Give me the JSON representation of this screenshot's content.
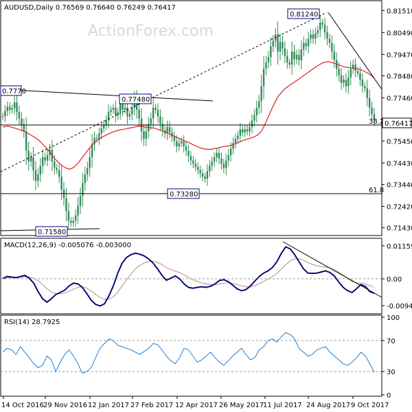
{
  "chart_data": [
    {
      "type": "candlestick",
      "panel": "price",
      "header": "AUDUSD,Daily  0.76569 0.76640 0.76249 0.76417",
      "watermark": "ActionForex.com",
      "y_ticks": [
        "0.81510",
        "0.80490",
        "0.79470",
        "0.78480",
        "0.77460",
        "0.76417",
        "0.75450",
        "0.74430",
        "0.73440",
        "0.72420",
        "0.71430"
      ],
      "y_tick_values": [
        0.8151,
        0.8049,
        0.7947,
        0.7848,
        0.7746,
        0.76417,
        0.7545,
        0.7443,
        0.7344,
        0.7242,
        0.7143
      ],
      "ylim": [
        0.7113,
        0.8187
      ],
      "last_price": "0.76417",
      "annotations": {
        "high_label": "0.81240",
        "top_left_label": "0.7770",
        "mid_label": "0.77480",
        "low_label": "0.73280",
        "bottom_label": "0.71580",
        "fib_382": "38.2",
        "fib_618": "61.8"
      },
      "series": [
        {
          "name": "Close",
          "values": [
            0.766,
            0.7685,
            0.7705,
            0.769,
            0.7698,
            0.7725,
            0.768,
            0.765,
            0.762,
            0.759,
            0.75,
            0.745,
            0.747,
            0.741,
            0.736,
            0.739,
            0.743,
            0.747,
            0.7455,
            0.748,
            0.7505,
            0.745,
            0.742,
            0.741,
            0.738,
            0.732,
            0.728,
            0.722,
            0.7175,
            0.7165,
            0.7175,
            0.72,
            0.7245,
            0.729,
            0.735,
            0.739,
            0.742,
            0.747,
            0.753,
            0.756,
            0.7555,
            0.758,
            0.7605,
            0.762,
            0.764,
            0.768,
            0.769,
            0.77,
            0.7665,
            0.768,
            0.772,
            0.769,
            0.77,
            0.766,
            0.767,
            0.77,
            0.774,
            0.769,
            0.765,
            0.759,
            0.7555,
            0.759,
            0.7625,
            0.765,
            0.77,
            0.769,
            0.766,
            0.7625,
            0.7595,
            0.758,
            0.761,
            0.7585,
            0.7565,
            0.7545,
            0.752,
            0.7535,
            0.7545,
            0.752,
            0.75,
            0.7475,
            0.7455,
            0.744,
            0.7425,
            0.741,
            0.7395,
            0.738,
            0.737,
            0.7405,
            0.743,
            0.745,
            0.747,
            0.749,
            0.7465,
            0.744,
            0.742,
            0.7455,
            0.748,
            0.751,
            0.7535,
            0.7555,
            0.757,
            0.76,
            0.7585,
            0.76,
            0.759,
            0.761,
            0.764,
            0.7665,
            0.77,
            0.773,
            0.78,
            0.788,
            0.791,
            0.7935,
            0.7985,
            0.801,
            0.804,
            0.796,
            0.8005,
            0.7975,
            0.794,
            0.791,
            0.79,
            0.796,
            0.7925,
            0.7945,
            0.792,
            0.797,
            0.8,
            0.7985,
            0.802,
            0.804,
            0.802,
            0.8045,
            0.806,
            0.8095,
            0.8085,
            0.805,
            0.802,
            0.8,
            0.796,
            0.792,
            0.788,
            0.785,
            0.7815,
            0.783,
            0.78,
            0.784,
            0.788,
            0.79,
            0.787,
            0.786,
            0.783,
            0.78,
            0.779,
            0.7745,
            0.77,
            0.767,
            0.7642
          ]
        }
      ],
      "overlays": {
        "sma55": [
          0.761,
          0.7612,
          0.7614,
          0.7612,
          0.7608,
          0.7605,
          0.7602,
          0.7598,
          0.7595,
          0.759,
          0.7585,
          0.7578,
          0.7572,
          0.7565,
          0.7558,
          0.755,
          0.754,
          0.7528,
          0.7517,
          0.7505,
          0.749,
          0.7475,
          0.7462,
          0.745,
          0.744,
          0.743,
          0.7423,
          0.7418,
          0.7415,
          0.7418,
          0.7425,
          0.7435,
          0.7448,
          0.7462,
          0.7478,
          0.7492,
          0.7507,
          0.752,
          0.7532,
          0.7543,
          0.755,
          0.7558,
          0.7565,
          0.757,
          0.7576,
          0.7581,
          0.7586,
          0.759,
          0.7594,
          0.7596,
          0.7598,
          0.76,
          0.7603,
          0.7605,
          0.7607,
          0.7609,
          0.7612,
          0.7613,
          0.7613,
          0.7612,
          0.761,
          0.7608,
          0.7607,
          0.7606,
          0.7604,
          0.76,
          0.7596,
          0.7592,
          0.7588,
          0.7583,
          0.7578,
          0.7573,
          0.7568,
          0.7563,
          0.7558,
          0.7553,
          0.7548,
          0.7543,
          0.7538,
          0.7533,
          0.7528,
          0.7523,
          0.7518,
          0.7513,
          0.751,
          0.7508,
          0.7507,
          0.7507,
          0.7508,
          0.751,
          0.7512,
          0.7515,
          0.7518,
          0.752,
          0.7521,
          0.7523,
          0.7526,
          0.753,
          0.7534,
          0.7538,
          0.7543,
          0.7548,
          0.7552,
          0.7555,
          0.7558,
          0.7562,
          0.7567,
          0.7573,
          0.7583,
          0.7598,
          0.762,
          0.7645,
          0.767,
          0.7695,
          0.7718,
          0.774,
          0.7757,
          0.777,
          0.7782,
          0.7792,
          0.78,
          0.7808,
          0.7815,
          0.7823,
          0.783,
          0.7838,
          0.7846,
          0.7854,
          0.7862,
          0.787,
          0.7878,
          0.7885,
          0.7893,
          0.79,
          0.7906,
          0.791,
          0.7913,
          0.7913,
          0.791,
          0.7907,
          0.7903,
          0.7899,
          0.7895,
          0.7891,
          0.7888,
          0.7886,
          0.7885,
          0.7884,
          0.7882,
          0.788,
          0.7877,
          0.7873,
          0.7868,
          0.7862,
          0.7855,
          0.7847,
          0.784
        ]
      }
    },
    {
      "type": "line",
      "panel": "macd",
      "header": "MACD(12,26,9) -0.005076 -0.003000",
      "y_ticks": [
        "0.01159",
        "0.00",
        "-0.009408"
      ],
      "y_tick_values": [
        0.01159,
        0.0,
        -0.009408
      ],
      "ylim": [
        -0.0118,
        0.0135
      ],
      "series": [
        {
          "name": "MACD",
          "values": [
            0.0001,
            0.0008,
            0.0006,
            0.0004,
            0.0008,
            0.0012,
            0.0002,
            -0.0015,
            -0.0045,
            -0.007,
            -0.0082,
            -0.007,
            -0.0055,
            -0.0048,
            -0.004,
            -0.0025,
            -0.0015,
            -0.0018,
            -0.003,
            -0.0052,
            -0.0075,
            -0.009,
            -0.0095,
            -0.0088,
            -0.006,
            -0.0025,
            0.002,
            0.0055,
            0.0075,
            0.0085,
            0.009,
            0.0086,
            0.008,
            0.007,
            0.0055,
            0.0035,
            0.0012,
            -0.0005,
            0.0002,
            0.001,
            0.0,
            -0.0018,
            -0.003,
            -0.0033,
            -0.003,
            -0.0028,
            -0.003,
            -0.0026,
            -0.0018,
            -0.0006,
            -0.0003,
            -0.001,
            -0.0022,
            -0.0035,
            -0.0042,
            -0.0038,
            -0.0025,
            -0.0008,
            0.0008,
            0.002,
            0.0028,
            0.004,
            0.006,
            0.009,
            0.0112,
            0.0105,
            0.0085,
            0.006,
            0.0035,
            0.002,
            0.0019,
            0.002,
            0.0024,
            0.0028,
            0.0022,
            0.001,
            -0.0012,
            -0.003,
            -0.0042,
            -0.0048,
            -0.0035,
            -0.002,
            -0.0027,
            -0.0045,
            -0.0051
          ]
        },
        {
          "name": "Signal",
          "values": [
            0.0001,
            0.0003,
            0.0004,
            0.0004,
            0.0005,
            0.0007,
            0.0006,
            0.0002,
            -0.0007,
            -0.002,
            -0.0035,
            -0.0046,
            -0.0052,
            -0.0053,
            -0.005,
            -0.0044,
            -0.0036,
            -0.003,
            -0.0028,
            -0.0033,
            -0.0043,
            -0.0055,
            -0.0065,
            -0.0072,
            -0.0072,
            -0.0063,
            -0.0047,
            -0.0025,
            -0.0003,
            0.0017,
            0.0035,
            0.0047,
            0.0056,
            0.0061,
            0.0062,
            0.0058,
            0.005,
            0.004,
            0.0032,
            0.0027,
            0.0022,
            0.0014,
            0.0005,
            -0.0003,
            -0.0009,
            -0.0014,
            -0.0018,
            -0.0021,
            -0.0021,
            -0.0018,
            -0.0015,
            -0.0014,
            -0.0016,
            -0.002,
            -0.0025,
            -0.0028,
            -0.0028,
            -0.0024,
            -0.0017,
            -0.0009,
            -0.0001,
            0.0008,
            0.0019,
            0.0034,
            0.005,
            0.0063,
            0.007,
            0.007,
            0.0065,
            0.0057,
            0.0051,
            0.0046,
            0.0043,
            0.0041,
            0.0038,
            0.0032,
            0.0023,
            0.0012,
            0.0001,
            -0.0009,
            -0.0014,
            -0.0015,
            -0.0018,
            -0.0024,
            -0.003
          ]
        }
      ]
    },
    {
      "type": "line",
      "panel": "rsi",
      "header": "RSI(14) 28.7925",
      "y_ticks": [
        "100",
        "70",
        "30",
        "0"
      ],
      "y_tick_values": [
        100,
        70,
        30,
        0
      ],
      "ylim": [
        0,
        100
      ],
      "series": [
        {
          "name": "RSI",
          "values": [
            55,
            60,
            58,
            52,
            62,
            55,
            48,
            40,
            35,
            38,
            50,
            45,
            30,
            42,
            52,
            58,
            50,
            40,
            28,
            30,
            35,
            48,
            60,
            66,
            72,
            70,
            64,
            62,
            60,
            58,
            55,
            52,
            56,
            60,
            66,
            65,
            58,
            50,
            44,
            40,
            48,
            60,
            58,
            50,
            42,
            45,
            50,
            55,
            48,
            42,
            38,
            44,
            50,
            55,
            60,
            52,
            45,
            48,
            58,
            62,
            70,
            72,
            68,
            75,
            80,
            78,
            72,
            60,
            55,
            50,
            52,
            58,
            60,
            62,
            55,
            50,
            45,
            40,
            38,
            42,
            48,
            55,
            50,
            40,
            29
          ]
        }
      ]
    }
  ],
  "x_axis": {
    "tick_labels": [
      "14 Oct 2016",
      "29 Nov 2016",
      "12 Jan 2017",
      "27 Feb 2017",
      "12 Apr 2017",
      "26 May 2017",
      "11 Jul 2017",
      "24 Aug 2017",
      "9 Oct 2017"
    ]
  },
  "colors": {
    "candle": "#2e8b57",
    "sma": "#dc2020",
    "macd_line": "#0a0a78",
    "signal_line": "#cc9999",
    "rsi_line": "#1e7fd8",
    "label_border": "#000080"
  }
}
